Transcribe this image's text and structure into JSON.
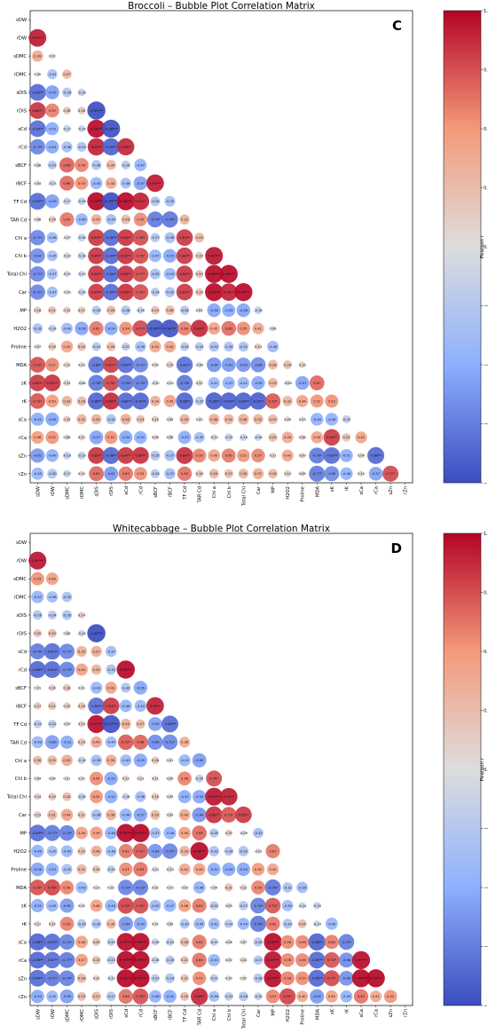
{
  "chart_data": [
    {
      "type": "bubble-correlation-matrix",
      "title": "Broccoli – Bubble Plot Correlation Matrix",
      "panel_label": "C",
      "colorbar_label": "Pearson r",
      "colorbar_ticks": [
        "1.00",
        "0.75",
        "0.50",
        "0.25",
        "0.00",
        "−0.25",
        "−0.50",
        "−0.75",
        "−1.00"
      ],
      "colorbar_range": [
        -1,
        1
      ],
      "colormap": [
        "#3b4cc0",
        "#8db0fe",
        "#dddddd",
        "#f49a7b",
        "#b40426"
      ],
      "variables": [
        "sDW",
        "rDW",
        "sDMC",
        "rDMC",
        "sDIS",
        "rDIS",
        "sCd",
        "rCd",
        "sBCF",
        "rBCF",
        "TF Cd",
        "TAR Cd",
        "Chl a",
        "Chl b",
        "Total Chl",
        "Car",
        "MP",
        "H2O2",
        "Proline",
        "MDA",
        "sK",
        "rK",
        "sCa",
        "rCa",
        "sZn",
        "rZn"
      ],
      "correlations": [
        [],
        [
          0.93
        ],
        [
          0.39,
          0.02
        ],
        [
          0.0,
          -0.31,
          0.27
        ],
        [
          -0.85,
          -0.59,
          -0.28,
          -0.18
        ],
        [
          0.84,
          0.59,
          0.18,
          0.18,
          -0.99
        ],
        [
          -0.83,
          -0.52,
          -0.17,
          -0.14,
          0.98,
          -0.98
        ],
        [
          -0.72,
          -0.54,
          -0.36,
          -0.29,
          0.91,
          -0.89,
          0.89
        ],
        [
          0.08,
          -0.25,
          0.69,
          0.58,
          -0.3,
          0.3,
          -0.24,
          -0.47
        ],
        [
          0.04,
          -0.13,
          0.66,
          0.53,
          -0.45,
          0.4,
          -0.36,
          -0.57,
          0.93
        ],
        [
          -0.85,
          -0.59,
          -0.17,
          -0.18,
          0.99,
          -0.99,
          0.98,
          0.91,
          -0.28,
          -0.35
        ],
        [
          0.08,
          0.16,
          0.62,
          -0.46,
          0.35,
          -0.35,
          0.28,
          0.55,
          -0.77,
          -0.79,
          0.31
        ],
        [
          -0.71,
          -0.38,
          -0.07,
          -0.18,
          0.83,
          -0.84,
          0.84,
          0.76,
          -0.27,
          -0.36,
          0.83,
          0.29
        ],
        [
          -0.67,
          -0.35,
          -0.13,
          -0.18,
          0.84,
          -0.84,
          0.85,
          0.76,
          -0.47,
          -0.55,
          0.83,
          0.19,
          0.95
        ],
        [
          -0.71,
          -0.37,
          -0.12,
          -0.13,
          0.84,
          -0.84,
          0.85,
          0.77,
          -0.35,
          -0.43,
          0.84,
          0.2,
          0.98,
          0.98
        ],
        [
          -0.71,
          -0.37,
          -0.02,
          -0.16,
          0.83,
          -0.83,
          0.85,
          0.75,
          -0.24,
          -0.32,
          0.83,
          0.19,
          0.98,
          0.91,
          0.98
        ],
        [
          0.16,
          0.21,
          0.15,
          0.17,
          -0.26,
          0.26,
          -0.28,
          -0.16,
          0.23,
          0.28,
          -0.26,
          0.04,
          -0.56,
          -0.53,
          -0.56,
          -0.18
        ],
        [
          -0.32,
          -0.18,
          -0.4,
          -0.56,
          0.62,
          -0.54,
          0.54,
          0.77,
          -0.94,
          -0.96,
          0.6,
          0.88,
          0.45,
          0.65,
          0.55,
          0.41,
          0.06
        ],
        [
          0.07,
          0.19,
          0.43,
          0.24,
          -0.24,
          0.26,
          -0.21,
          -0.36,
          0.42,
          0.42,
          -0.24,
          -0.24,
          -0.32,
          -0.3,
          -0.31,
          0.14,
          -0.4
        ],
        [
          0.75,
          0.57,
          0.12,
          0.03,
          -0.8,
          0.81,
          -0.83,
          -0.71,
          0.05,
          0.15,
          -0.81,
          -0.09,
          -0.64,
          -0.61,
          -0.63,
          -0.68,
          0.28,
          0.24,
          0.13
        ],
        [
          0.83,
          0.85,
          0.13,
          -0.08,
          -0.78,
          0.78,
          -0.78,
          -0.75,
          -0.1,
          -0.01,
          -0.78,
          0.12,
          -0.41,
          -0.47,
          -0.42,
          -0.55,
          0.29,
          -0.08,
          -0.57,
          0.67
        ],
        [
          0.73,
          0.5,
          0.33,
          0.28,
          -0.88,
          0.88,
          -0.86,
          -0.87,
          0.34,
          0.45,
          -0.88,
          -0.25,
          -0.9,
          -0.89,
          -0.89,
          -0.9,
          0.72,
          0.32,
          0.44,
          0.52,
          0.53
        ],
        [
          -0.52,
          -0.55,
          0.15,
          0.31,
          0.33,
          -0.31,
          0.36,
          0.23,
          0.15,
          0.09,
          0.33,
          0.0,
          0.36,
          0.32,
          0.36,
          0.32,
          0.29,
          0.09,
          0.03,
          -0.49,
          -0.49,
          -0.2
        ],
        [
          0.48,
          0.52,
          0.08,
          0.12,
          -0.57,
          0.52,
          -0.54,
          -0.5,
          0.08,
          0.08,
          -0.52,
          -0.35,
          -0.12,
          -0.19,
          -0.16,
          -0.16,
          0.25,
          0.4,
          0.08,
          0.44,
          0.82,
          0.22,
          0.42
        ],
        [
          -0.62,
          -0.49,
          -0.19,
          -0.19,
          0.85,
          -0.86,
          0.84,
          0.85,
          -0.29,
          -0.37,
          0.86,
          0.58,
          0.45,
          0.6,
          0.51,
          0.57,
          0.11,
          0.42,
          0.09,
          -0.76,
          -0.83,
          -0.51,
          0.06,
          -0.86
        ],
        [
          -0.45,
          -0.3,
          -0.17,
          0.1,
          0.67,
          -0.61,
          0.63,
          0.53,
          -0.25,
          -0.37,
          0.63,
          0.18,
          0.29,
          0.25,
          0.3,
          0.37,
          0.28,
          0.14,
          0.09,
          -0.77,
          -0.69,
          -0.48,
          0.1,
          -0.57,
          0.77
        ]
      ]
    },
    {
      "type": "bubble-correlation-matrix",
      "title": "Whitecabbage – Bubble Plot Correlation Matrix",
      "panel_label": "D",
      "colorbar_label": "Pearson r",
      "colorbar_ticks": [
        "1.00",
        "0.75",
        "0.50",
        "0.25",
        "0.00",
        "−0.25",
        "−0.50",
        "−0.75",
        "−1.00"
      ],
      "colorbar_range": [
        -1,
        1
      ],
      "colormap": [
        "#3b4cc0",
        "#8db0fe",
        "#dddddd",
        "#f49a7b",
        "#b40426"
      ],
      "variables": [
        "sDW",
        "rDW",
        "sDMC",
        "rDMC",
        "sDIS",
        "rDIS",
        "sCd",
        "rCd",
        "sBCF",
        "rBCF",
        "TF Cd",
        "TAR Cd",
        "Chl a",
        "Chl b",
        "Total Chl",
        "Car",
        "MP",
        "H2O2",
        "Proline",
        "MDA",
        "sK",
        "rK",
        "sCa",
        "rCa",
        "sZn",
        "rZn"
      ],
      "correlations": [
        [],
        [
          0.95
        ],
        [
          0.53,
          0.46
        ],
        [
          -0.47,
          -0.38,
          -0.32
        ],
        [
          -0.28,
          -0.24,
          -0.3,
          0.14
        ],
        [
          0.2,
          0.24,
          0.08,
          -0.14,
          -1.0
        ],
        [
          -0.76,
          -0.82,
          -0.71,
          0.35,
          0.37,
          -0.37
        ],
        [
          -0.86,
          -0.85,
          -0.73,
          0.45,
          0.32,
          -0.32,
          0.99
        ],
        [
          0.01,
          0.14,
          0.18,
          0.01,
          -0.43,
          0.43,
          -0.3,
          -0.56
        ],
        [
          0.17,
          0.21,
          0.15,
          0.18,
          -0.83,
          0.83,
          -0.46,
          -0.43,
          0.92
        ],
        [
          -0.22,
          -0.22,
          -0.07,
          0.13,
          0.97,
          -0.97,
          0.34,
          0.27,
          -0.59,
          -0.85
        ],
        [
          -0.43,
          -0.6,
          -0.53,
          0.19,
          0.4,
          -0.4,
          0.72,
          0.68,
          -0.69,
          -0.71,
          0.36
        ],
        [
          0.26,
          0.29,
          0.39,
          -0.18,
          -0.39,
          0.39,
          -0.42,
          -0.55,
          0.18,
          0.01,
          -0.43,
          -0.6
        ],
        [
          0.04,
          0.04,
          0.01,
          0.01,
          0.55,
          -0.55,
          0.12,
          0.11,
          0.11,
          0.09,
          0.58,
          -0.2,
          0.76
        ],
        [
          0.14,
          0.19,
          0.24,
          -0.18,
          0.52,
          -0.52,
          -0.16,
          -0.36,
          0.18,
          0.05,
          -0.52,
          -0.55,
          0.95,
          0.92
        ],
        [
          0.15,
          0.31,
          0.44,
          0.21,
          -0.36,
          0.36,
          -0.48,
          -0.57,
          0.29,
          0.09,
          0.4,
          -0.64,
          0.85,
          0.73,
          0.83
        ],
        [
          -0.83,
          -0.77,
          -0.73,
          0.46,
          0.49,
          -0.48,
          0.99,
          0.99,
          -0.37,
          -0.48,
          0.46,
          0.66,
          -0.26,
          0.15,
          -0.09,
          -0.33
        ],
        [
          -0.49,
          -0.35,
          -0.43,
          0.22,
          0.38,
          -0.38,
          0.61,
          0.72,
          -0.64,
          -0.72,
          0.33,
          0.98,
          -0.32,
          -0.26,
          -0.32,
          -0.02,
          0.61
        ],
        [
          -0.56,
          -0.51,
          -0.35,
          0.31,
          0.2,
          -0.2,
          0.55,
          0.63,
          -0.11,
          -0.12,
          0.41,
          0.46,
          -0.52,
          -0.54,
          -0.55,
          0.5,
          0.42
        ],
        [
          0.74,
          0.78,
          0.58,
          -0.43,
          -0.01,
          0.01,
          -0.72,
          -0.73,
          0.02,
          -0.01,
          -0.02,
          -0.46,
          0.04,
          0.21,
          0.13,
          0.58,
          -0.78,
          -0.32,
          -0.39
        ],
        [
          -0.52,
          -0.45,
          -0.61,
          0.02,
          0.46,
          -0.46,
          0.79,
          0.76,
          -0.4,
          -0.47,
          0.48,
          0.62,
          -0.24,
          0.09,
          -0.27,
          -0.74,
          0.73,
          -0.39,
          -0.14,
          -0.16
        ],
        [
          0.11,
          0.12,
          0.59,
          -0.26,
          -0.3,
          0.3,
          -0.64,
          -0.54,
          0.01,
          0.09,
          -0.3,
          -0.4,
          -0.41,
          -0.24,
          -0.44,
          -0.78,
          0.62,
          -0.3,
          0.24,
          -0.14,
          -0.45
        ],
        [
          -0.88,
          -0.83,
          -0.72,
          0.46,
          0.2,
          -0.2,
          0.97,
          0.98,
          -0.16,
          -0.2,
          0.28,
          0.62,
          -0.19,
          0.08,
          0.07,
          -0.26,
          0.98,
          0.56,
          0.56,
          -0.89,
          0.6,
          -0.75
        ],
        [
          -0.86,
          -0.82,
          -0.77,
          0.47,
          0.23,
          -0.23,
          0.99,
          0.99,
          -0.18,
          -0.26,
          0.21,
          0.64,
          -0.45,
          0.02,
          0.12,
          -0.27,
          0.95,
          0.56,
          0.56,
          -0.85,
          0.74,
          -0.68,
          0.97
        ],
        [
          -0.84,
          -0.77,
          -0.74,
          0.28,
          0.12,
          -0.12,
          0.99,
          0.99,
          -0.23,
          -0.29,
          0.21,
          0.55,
          -0.21,
          0.1,
          0.02,
          -0.28,
          0.97,
          0.58,
          0.55,
          -0.86,
          0.77,
          -0.66,
          0.99,
          0.99
        ],
        [
          -0.54,
          -0.42,
          -0.59,
          0.25,
          0.27,
          -0.27,
          0.64,
          0.75,
          -0.48,
          -0.52,
          0.25,
          0.88,
          -0.36,
          -0.23,
          -0.28,
          -0.19,
          0.57,
          0.79,
          0.4,
          -0.62,
          0.45,
          -0.45,
          0.63,
          0.41,
          0.52
        ]
      ]
    }
  ]
}
